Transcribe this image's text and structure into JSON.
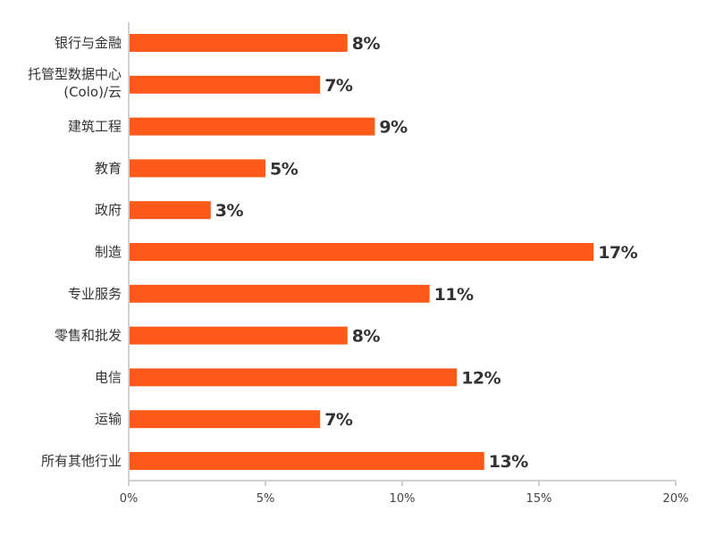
{
  "chart_data": {
    "type": "bar",
    "orientation": "horizontal",
    "categories": [
      [
        "银行与金融"
      ],
      [
        "托管型数据中心",
        "(Colo)/云"
      ],
      [
        "建筑工程"
      ],
      [
        "教育"
      ],
      [
        "政府"
      ],
      [
        "制造"
      ],
      [
        "专业服务"
      ],
      [
        "零售和批发"
      ],
      [
        "电信"
      ],
      [
        "运输"
      ],
      [
        "所有其他行业"
      ]
    ],
    "values": [
      8,
      7,
      9,
      5,
      3,
      17,
      11,
      8,
      12,
      7,
      13
    ],
    "data_labels": [
      "8%",
      "7%",
      "9%",
      "5%",
      "3%",
      "17%",
      "11%",
      "8%",
      "12%",
      "7%",
      "13%"
    ],
    "xlim": [
      0,
      20
    ],
    "xticks": [
      0,
      5,
      10,
      15,
      20
    ],
    "xtick_labels": [
      "0%",
      "5%",
      "10%",
      "15%",
      "20%"
    ],
    "grid": false,
    "bar_color": "#ff5a1a",
    "axis_color": "#d0d0d0"
  }
}
